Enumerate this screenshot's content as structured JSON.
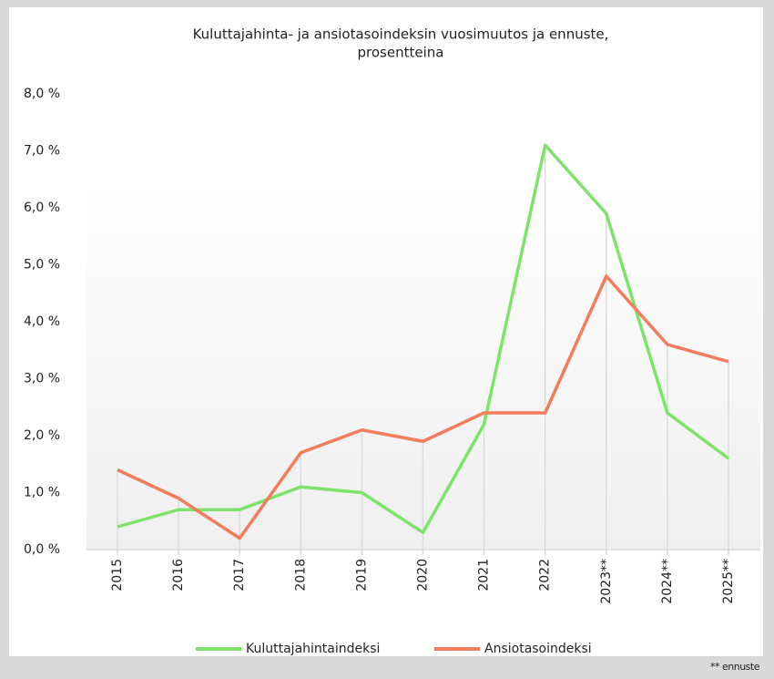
{
  "chart_data": {
    "type": "line",
    "title": [
      "Kuluttajahinta- ja ansiotasoindeksin vuosimuutos ja ennuste,",
      "prosentteina"
    ],
    "categories": [
      "2015",
      "2016",
      "2017",
      "2018",
      "2019",
      "2020",
      "2021",
      "2022",
      "2023**",
      "2024**",
      "2025**"
    ],
    "series": [
      {
        "name": "Kuluttajahintaindeksi",
        "color": "#7ee36a",
        "values": [
          0.4,
          0.7,
          0.7,
          1.1,
          1.0,
          0.3,
          2.2,
          7.1,
          5.9,
          2.4,
          1.6
        ]
      },
      {
        "name": "Ansiotasoindeksi",
        "color": "#f27c5b",
        "values": [
          1.4,
          0.9,
          0.2,
          1.7,
          2.1,
          1.9,
          2.4,
          2.4,
          4.8,
          3.6,
          3.3
        ]
      }
    ],
    "ylim": [
      0,
      8
    ],
    "yticks": [
      {
        "value": 0,
        "label": "0,0 %"
      },
      {
        "value": 1,
        "label": "1,0 %"
      },
      {
        "value": 2,
        "label": "2,0 %"
      },
      {
        "value": 3,
        "label": "3,0 %"
      },
      {
        "value": 4,
        "label": "4,0 %"
      },
      {
        "value": 5,
        "label": "5,0 %"
      },
      {
        "value": 6,
        "label": "6,0 %"
      },
      {
        "value": 7,
        "label": "7,0 %"
      },
      {
        "value": 8,
        "label": "8,0 %"
      }
    ],
    "legend": "bottom",
    "note": "** ennuste"
  }
}
